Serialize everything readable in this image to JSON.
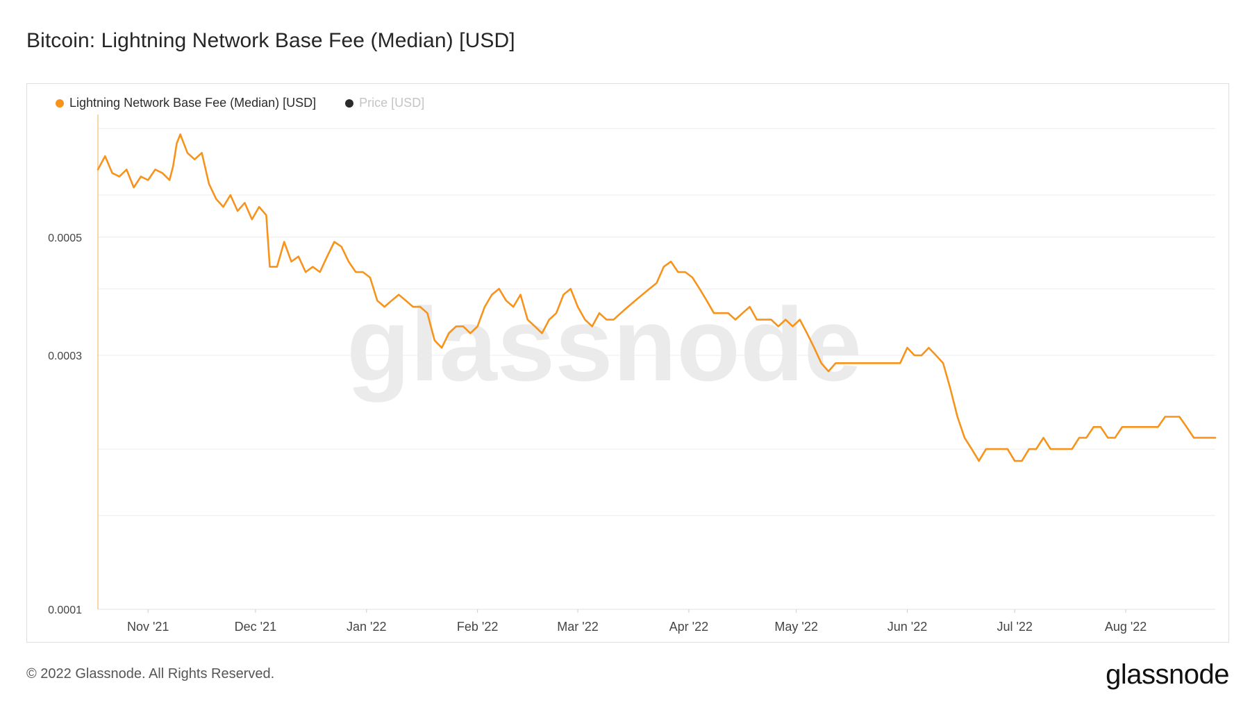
{
  "title": "Bitcoin: Lightning Network Base Fee (Median) [USD]",
  "footer": {
    "copyright": "© 2022 Glassnode. All Rights Reserved.",
    "logo": "glassnode"
  },
  "watermark": "glassnode",
  "colors": {
    "series": "#f7931a",
    "price": "#2b2b2b",
    "grid": "#ececec",
    "axis_text": "#444444"
  },
  "legend": [
    {
      "label": "Lightning Network Base Fee (Median) [USD]",
      "color": "#f7931a",
      "active": true
    },
    {
      "label": "Price [USD]",
      "color": "#2b2b2b",
      "active": false
    }
  ],
  "chart_data": {
    "type": "line",
    "title": "Bitcoin: Lightning Network Base Fee (Median) [USD]",
    "xlabel": "",
    "ylabel": "",
    "y_ticks": [
      "0.0001",
      "0.0003",
      "0.0005"
    ],
    "y_scale": "log",
    "ylim": [
      0.0001,
      0.00085
    ],
    "grid": true,
    "legend_position": "top-left",
    "x_ticks": [
      {
        "label": "Nov '21",
        "date": "2021-11-01"
      },
      {
        "label": "Dec '21",
        "date": "2021-12-01"
      },
      {
        "label": "Jan '22",
        "date": "2022-01-01"
      },
      {
        "label": "Feb '22",
        "date": "2022-02-01"
      },
      {
        "label": "Mar '22",
        "date": "2022-03-01"
      },
      {
        "label": "Apr '22",
        "date": "2022-04-01"
      },
      {
        "label": "May '22",
        "date": "2022-05-01"
      },
      {
        "label": "Jun '22",
        "date": "2022-06-01"
      },
      {
        "label": "Jul '22",
        "date": "2022-07-01"
      },
      {
        "label": "Aug '22",
        "date": "2022-08-01"
      }
    ],
    "series": [
      {
        "name": "Lightning Network Base Fee (Median) [USD]",
        "points": [
          [
            "2021-10-18",
            0.00067
          ],
          [
            "2021-10-20",
            0.00071
          ],
          [
            "2021-10-22",
            0.00066
          ],
          [
            "2021-10-24",
            0.00065
          ],
          [
            "2021-10-26",
            0.00067
          ],
          [
            "2021-10-28",
            0.00062
          ],
          [
            "2021-10-30",
            0.00065
          ],
          [
            "2021-11-01",
            0.00064
          ],
          [
            "2021-11-03",
            0.00067
          ],
          [
            "2021-11-05",
            0.00066
          ],
          [
            "2021-11-07",
            0.00064
          ],
          [
            "2021-11-08",
            0.00068
          ],
          [
            "2021-11-09",
            0.00075
          ],
          [
            "2021-11-10",
            0.00078
          ],
          [
            "2021-11-12",
            0.00072
          ],
          [
            "2021-11-14",
            0.0007
          ],
          [
            "2021-11-16",
            0.00072
          ],
          [
            "2021-11-18",
            0.00063
          ],
          [
            "2021-11-20",
            0.00059
          ],
          [
            "2021-11-22",
            0.00057
          ],
          [
            "2021-11-24",
            0.0006
          ],
          [
            "2021-11-26",
            0.00056
          ],
          [
            "2021-11-28",
            0.00058
          ],
          [
            "2021-11-30",
            0.00054
          ],
          [
            "2021-12-02",
            0.00057
          ],
          [
            "2021-12-04",
            0.00055
          ],
          [
            "2021-12-05",
            0.00044
          ],
          [
            "2021-12-07",
            0.00044
          ],
          [
            "2021-12-09",
            0.00049
          ],
          [
            "2021-12-11",
            0.00045
          ],
          [
            "2021-12-13",
            0.00046
          ],
          [
            "2021-12-15",
            0.00043
          ],
          [
            "2021-12-17",
            0.00044
          ],
          [
            "2021-12-19",
            0.00043
          ],
          [
            "2021-12-21",
            0.00046
          ],
          [
            "2021-12-23",
            0.00049
          ],
          [
            "2021-12-25",
            0.00048
          ],
          [
            "2021-12-27",
            0.00045
          ],
          [
            "2021-12-29",
            0.00043
          ],
          [
            "2021-12-31",
            0.00043
          ],
          [
            "2022-01-02",
            0.00042
          ],
          [
            "2022-01-04",
            0.00038
          ],
          [
            "2022-01-06",
            0.00037
          ],
          [
            "2022-01-08",
            0.00038
          ],
          [
            "2022-01-10",
            0.00039
          ],
          [
            "2022-01-12",
            0.00038
          ],
          [
            "2022-01-14",
            0.00037
          ],
          [
            "2022-01-16",
            0.00037
          ],
          [
            "2022-01-18",
            0.00036
          ],
          [
            "2022-01-20",
            0.00032
          ],
          [
            "2022-01-22",
            0.00031
          ],
          [
            "2022-01-24",
            0.00033
          ],
          [
            "2022-01-26",
            0.00034
          ],
          [
            "2022-01-28",
            0.00034
          ],
          [
            "2022-01-30",
            0.00033
          ],
          [
            "2022-02-01",
            0.00034
          ],
          [
            "2022-02-03",
            0.00037
          ],
          [
            "2022-02-05",
            0.00039
          ],
          [
            "2022-02-07",
            0.0004
          ],
          [
            "2022-02-09",
            0.00038
          ],
          [
            "2022-02-11",
            0.00037
          ],
          [
            "2022-02-13",
            0.00039
          ],
          [
            "2022-02-15",
            0.00035
          ],
          [
            "2022-02-17",
            0.00034
          ],
          [
            "2022-02-19",
            0.00033
          ],
          [
            "2022-02-21",
            0.00035
          ],
          [
            "2022-02-23",
            0.00036
          ],
          [
            "2022-02-25",
            0.00039
          ],
          [
            "2022-02-27",
            0.0004
          ],
          [
            "2022-03-01",
            0.00037
          ],
          [
            "2022-03-03",
            0.00035
          ],
          [
            "2022-03-05",
            0.00034
          ],
          [
            "2022-03-07",
            0.00036
          ],
          [
            "2022-03-09",
            0.00035
          ],
          [
            "2022-03-11",
            0.00035
          ],
          [
            "2022-03-13",
            0.00036
          ],
          [
            "2022-03-15",
            0.00037
          ],
          [
            "2022-03-17",
            0.00038
          ],
          [
            "2022-03-19",
            0.00039
          ],
          [
            "2022-03-21",
            0.0004
          ],
          [
            "2022-03-23",
            0.00041
          ],
          [
            "2022-03-25",
            0.00044
          ],
          [
            "2022-03-27",
            0.00045
          ],
          [
            "2022-03-29",
            0.00043
          ],
          [
            "2022-03-31",
            0.00043
          ],
          [
            "2022-04-02",
            0.00042
          ],
          [
            "2022-04-04",
            0.0004
          ],
          [
            "2022-04-06",
            0.00038
          ],
          [
            "2022-04-08",
            0.00036
          ],
          [
            "2022-04-10",
            0.00036
          ],
          [
            "2022-04-12",
            0.00036
          ],
          [
            "2022-04-14",
            0.00035
          ],
          [
            "2022-04-16",
            0.00036
          ],
          [
            "2022-04-18",
            0.00037
          ],
          [
            "2022-04-20",
            0.00035
          ],
          [
            "2022-04-22",
            0.00035
          ],
          [
            "2022-04-24",
            0.00035
          ],
          [
            "2022-04-26",
            0.00034
          ],
          [
            "2022-04-28",
            0.00035
          ],
          [
            "2022-04-30",
            0.00034
          ],
          [
            "2022-05-02",
            0.00035
          ],
          [
            "2022-05-04",
            0.00033
          ],
          [
            "2022-05-06",
            0.00031
          ],
          [
            "2022-05-08",
            0.00029
          ],
          [
            "2022-05-10",
            0.00028
          ],
          [
            "2022-05-12",
            0.00029
          ],
          [
            "2022-05-14",
            0.00029
          ],
          [
            "2022-05-16",
            0.00029
          ],
          [
            "2022-05-18",
            0.00029
          ],
          [
            "2022-05-20",
            0.00029
          ],
          [
            "2022-05-22",
            0.00029
          ],
          [
            "2022-05-24",
            0.00029
          ],
          [
            "2022-05-26",
            0.00029
          ],
          [
            "2022-05-28",
            0.00029
          ],
          [
            "2022-05-30",
            0.00029
          ],
          [
            "2022-06-01",
            0.00031
          ],
          [
            "2022-06-03",
            0.0003
          ],
          [
            "2022-06-05",
            0.0003
          ],
          [
            "2022-06-07",
            0.00031
          ],
          [
            "2022-06-09",
            0.0003
          ],
          [
            "2022-06-11",
            0.00029
          ],
          [
            "2022-06-13",
            0.00026
          ],
          [
            "2022-06-15",
            0.00023
          ],
          [
            "2022-06-17",
            0.00021
          ],
          [
            "2022-06-19",
            0.0002
          ],
          [
            "2022-06-21",
            0.00019
          ],
          [
            "2022-06-23",
            0.0002
          ],
          [
            "2022-06-25",
            0.0002
          ],
          [
            "2022-06-27",
            0.0002
          ],
          [
            "2022-06-29",
            0.0002
          ],
          [
            "2022-07-01",
            0.00019
          ],
          [
            "2022-07-03",
            0.00019
          ],
          [
            "2022-07-05",
            0.0002
          ],
          [
            "2022-07-07",
            0.0002
          ],
          [
            "2022-07-09",
            0.00021
          ],
          [
            "2022-07-11",
            0.0002
          ],
          [
            "2022-07-13",
            0.0002
          ],
          [
            "2022-07-15",
            0.0002
          ],
          [
            "2022-07-17",
            0.0002
          ],
          [
            "2022-07-19",
            0.00021
          ],
          [
            "2022-07-21",
            0.00021
          ],
          [
            "2022-07-23",
            0.00022
          ],
          [
            "2022-07-25",
            0.00022
          ],
          [
            "2022-07-27",
            0.00021
          ],
          [
            "2022-07-29",
            0.00021
          ],
          [
            "2022-07-31",
            0.00022
          ],
          [
            "2022-08-02",
            0.00022
          ],
          [
            "2022-08-04",
            0.00022
          ],
          [
            "2022-08-06",
            0.00022
          ],
          [
            "2022-08-08",
            0.00022
          ],
          [
            "2022-08-10",
            0.00022
          ],
          [
            "2022-08-12",
            0.00023
          ],
          [
            "2022-08-14",
            0.00023
          ],
          [
            "2022-08-16",
            0.00023
          ],
          [
            "2022-08-18",
            0.00022
          ],
          [
            "2022-08-20",
            0.00021
          ],
          [
            "2022-08-22",
            0.00021
          ],
          [
            "2022-08-24",
            0.00021
          ],
          [
            "2022-08-26",
            0.00021
          ]
        ]
      }
    ]
  }
}
